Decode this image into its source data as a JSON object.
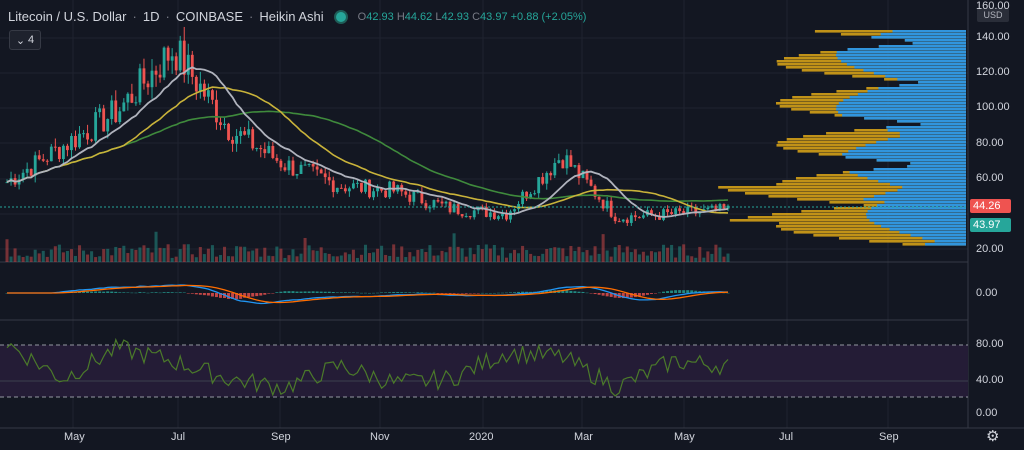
{
  "header": {
    "symbol": "Litecoin / U.S. Dollar",
    "interval": "1D",
    "exchange": "COINBASE",
    "chart_style": "Heikin Ashi",
    "open": "42.93",
    "high": "44.62",
    "low": "42.93",
    "close": "43.97",
    "change": "+0.88 (+2.05%)"
  },
  "indicators_button": {
    "icon": "chevron-down-icon",
    "count": "4"
  },
  "price_axis": {
    "currency": "USD",
    "ticks": [
      "160.00",
      "140.00",
      "120.00",
      "100.00",
      "80.00",
      "60.00",
      "20.00"
    ]
  },
  "price_labels": {
    "ma_value": "44.26",
    "last_price": "43.97"
  },
  "macd_axis": {
    "ticks": [
      "0.00"
    ]
  },
  "rsi_axis": {
    "ticks": [
      "80.00",
      "40.00",
      "0.00"
    ]
  },
  "time_axis": {
    "ticks": [
      "May",
      "Jul",
      "Sep",
      "Nov",
      "2020",
      "Mar",
      "May",
      "Jul",
      "Sep"
    ]
  },
  "colors": {
    "background": "#131722",
    "up": "#26a69a",
    "down": "#ef5350",
    "ma_fast": "#b0b3bd",
    "ma_mid": "#c9b33a",
    "ma_slow": "#3f8a3c",
    "macd": "#2196f3",
    "signal": "#ff6d00",
    "rsi": "#4b7a2a",
    "rsi_band": "#2a1f3f",
    "vp_up": "#d4a017",
    "vp_down": "#2196f3"
  },
  "chart_data": [
    {
      "type": "line",
      "title": "Litecoin / U.S. Dollar",
      "x": [
        "2019-04",
        "2019-05",
        "2019-06",
        "2019-07",
        "2019-08",
        "2019-09",
        "2019-10",
        "2019-11",
        "2019-12",
        "2020-01",
        "2020-02",
        "2020-03",
        "2020-04",
        "2020-05"
      ],
      "series": [
        {
          "values": [
            60,
            80,
            100,
            135,
            90,
            70,
            58,
            55,
            45,
            42,
            75,
            40,
            42,
            44
          ]
        }
      ],
      "ylim": [
        15,
        160
      ],
      "log_scale": false
    },
    {
      "type": "line",
      "x": [
        "2019-04",
        "2019-05",
        "2019-06",
        "2019-07",
        "2019-08",
        "2019-09",
        "2019-10",
        "2019-11",
        "2019-12",
        "2020-01",
        "2020-02",
        "2020-03",
        "2020-04",
        "2020-05"
      ],
      "series": [
        {
          "values": [
            80,
            40,
            75,
            60,
            40,
            30,
            55,
            35,
            40,
            70,
            65,
            30,
            60,
            55
          ]
        }
      ],
      "ylim": [
        0,
        100
      ],
      "reference_lines": [
        20,
        80
      ]
    }
  ]
}
